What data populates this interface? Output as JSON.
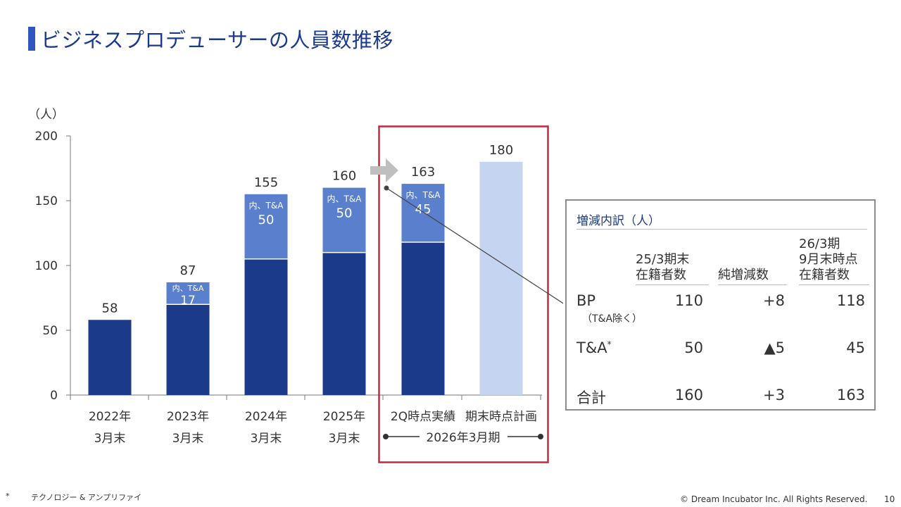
{
  "page": {
    "title": "ビジネスプロデューサーの人員数推移",
    "footnote_marker": "*",
    "footnote_text": "テクノロジー & アンプリファイ",
    "copyright": "© Dream Incubator Inc. All Rights Reserved.",
    "page_number": "10"
  },
  "colors": {
    "dark_blue": "#1b3b8a",
    "mid_blue": "#5a7fcd",
    "light_blue": "#c5d4f1",
    "highlight_red": "#c4283a",
    "arrow_gray": "#bfbfbf"
  },
  "chart_data": {
    "type": "bar",
    "stacked": true,
    "unit_label": "（人）",
    "ylim": [
      0,
      200
    ],
    "yticks": [
      0,
      50,
      100,
      150,
      200
    ],
    "categories": [
      {
        "line1": "2022年",
        "line2": "3月末"
      },
      {
        "line1": "2023年",
        "line2": "3月末"
      },
      {
        "line1": "2024年",
        "line2": "3月末"
      },
      {
        "line1": "2025年",
        "line2": "3月末"
      },
      {
        "line1": "2Q時点実績",
        "line2": ""
      },
      {
        "line1": "期末時点計画",
        "line2": ""
      }
    ],
    "group_label": "2026年3月期",
    "series": [
      {
        "name": "BP（T&A除く）",
        "values": [
          58,
          70,
          105,
          110,
          118,
          null
        ]
      },
      {
        "name": "内、T&A",
        "values": [
          null,
          17,
          50,
          50,
          45,
          null
        ]
      },
      {
        "name": "期末時点計画",
        "values": [
          null,
          null,
          null,
          null,
          null,
          180
        ]
      }
    ],
    "totals": [
      58,
      87,
      155,
      160,
      163,
      180
    ],
    "inner_label": "内、T&A"
  },
  "breakdown": {
    "title": "増減内訳（人）",
    "headers": {
      "prev": [
        "25/3期末",
        "在籍者数"
      ],
      "change": "純増減数",
      "current": [
        "26/3期",
        "9月末時点",
        "在籍者数"
      ]
    },
    "rows": [
      {
        "label": "BP",
        "sub": "（T&A除く）",
        "sup": "",
        "prev": "110",
        "change": "+8",
        "current": "118"
      },
      {
        "label": "T&A",
        "sub": "",
        "sup": "*",
        "prev": "50",
        "change": "▲5",
        "current": "45"
      },
      {
        "label": "合計",
        "sub": "",
        "sup": "",
        "prev": "160",
        "change": "+3",
        "current": "163"
      }
    ]
  }
}
